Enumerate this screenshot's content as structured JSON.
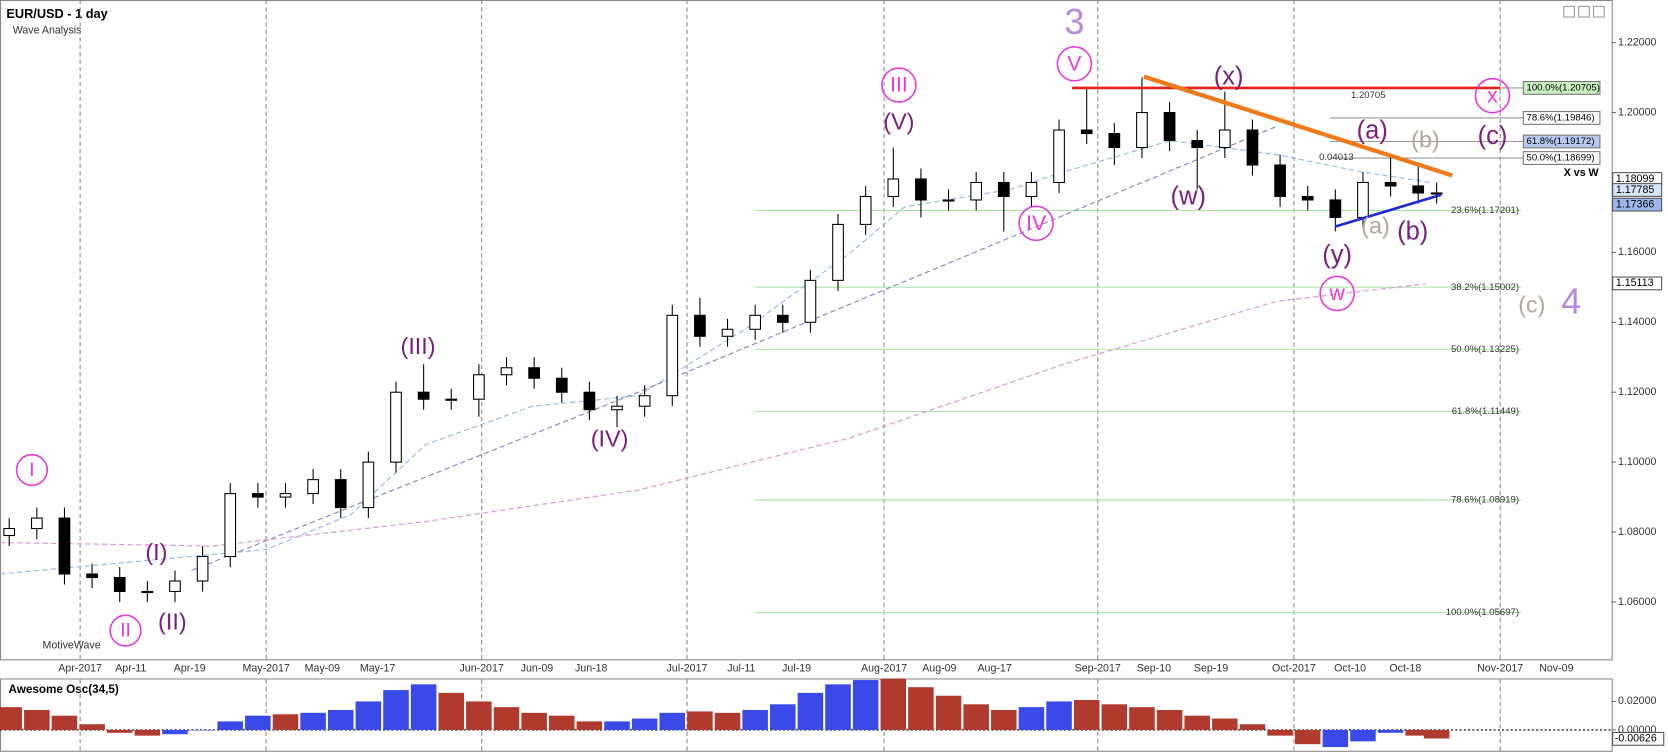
{
  "chart_data": [
    {
      "type": "candlestick",
      "title": "EUR/USD - 1 day",
      "subtitle": "Wave Analysis",
      "watermark": "MotiveWave",
      "x": [
        1,
        4,
        7,
        10,
        13,
        16,
        19,
        22,
        25,
        28,
        31,
        34,
        37,
        40,
        43,
        46,
        49,
        52,
        55,
        58,
        61,
        64,
        67,
        70,
        73,
        76,
        79,
        82,
        85,
        88,
        91,
        94,
        97,
        100,
        103,
        106,
        109,
        112,
        115,
        118,
        121,
        124,
        127,
        130,
        133,
        136,
        139,
        142,
        145,
        148,
        151,
        154,
        156
      ],
      "open": [
        1.079,
        1.081,
        1.084,
        1.068,
        1.067,
        1.063,
        1.063,
        1.066,
        1.073,
        1.091,
        1.09,
        1.091,
        1.095,
        1.087,
        1.1,
        1.12,
        1.118,
        1.118,
        1.125,
        1.127,
        1.124,
        1.12,
        1.115,
        1.116,
        1.119,
        1.142,
        1.136,
        1.138,
        1.142,
        1.14,
        1.152,
        1.168,
        1.176,
        1.181,
        1.175,
        1.175,
        1.18,
        1.176,
        1.18,
        1.195,
        1.194,
        1.19,
        1.2,
        1.192,
        1.19,
        1.195,
        1.185,
        1.176,
        1.175,
        1.17,
        1.18,
        1.179,
        1.177
      ],
      "high": [
        1.084,
        1.087,
        1.087,
        1.071,
        1.07,
        1.066,
        1.069,
        1.076,
        1.094,
        1.094,
        1.094,
        1.098,
        1.098,
        1.103,
        1.123,
        1.128,
        1.121,
        1.128,
        1.13,
        1.13,
        1.127,
        1.123,
        1.119,
        1.122,
        1.145,
        1.147,
        1.141,
        1.145,
        1.145,
        1.155,
        1.171,
        1.179,
        1.19,
        1.184,
        1.178,
        1.183,
        1.183,
        1.183,
        1.198,
        1.207,
        1.197,
        1.21,
        1.203,
        1.195,
        1.206,
        1.198,
        1.188,
        1.179,
        1.178,
        1.183,
        1.188,
        1.185,
        1.18
      ],
      "low": [
        1.076,
        1.078,
        1.065,
        1.064,
        1.06,
        1.06,
        1.06,
        1.063,
        1.07,
        1.087,
        1.087,
        1.088,
        1.084,
        1.084,
        1.097,
        1.115,
        1.115,
        1.113,
        1.122,
        1.121,
        1.117,
        1.112,
        1.11,
        1.113,
        1.116,
        1.133,
        1.133,
        1.135,
        1.137,
        1.137,
        1.149,
        1.165,
        1.173,
        1.17,
        1.172,
        1.172,
        1.166,
        1.173,
        1.177,
        1.191,
        1.185,
        1.187,
        1.189,
        1.178,
        1.187,
        1.182,
        1.173,
        1.172,
        1.166,
        1.167,
        1.176,
        1.174,
        1.174
      ],
      "close": [
        1.081,
        1.084,
        1.068,
        1.067,
        1.063,
        1.063,
        1.066,
        1.073,
        1.091,
        1.09,
        1.091,
        1.095,
        1.087,
        1.1,
        1.12,
        1.118,
        1.118,
        1.125,
        1.127,
        1.124,
        1.12,
        1.115,
        1.116,
        1.119,
        1.142,
        1.136,
        1.138,
        1.142,
        1.14,
        1.152,
        1.168,
        1.176,
        1.181,
        1.175,
        1.175,
        1.18,
        1.176,
        1.18,
        1.195,
        1.194,
        1.19,
        1.2,
        1.192,
        1.19,
        1.195,
        1.185,
        1.176,
        1.175,
        1.17,
        1.18,
        1.179,
        1.177,
        1.177
      ],
      "up_color": "#ffffff",
      "down_color": "#000000",
      "xlim": [
        0,
        175
      ],
      "xticks": [
        {
          "value": 8.7,
          "label": "Apr-2017"
        },
        {
          "value": 14.2,
          "label": "Apr-11"
        },
        {
          "value": 20.6,
          "label": "Apr-19"
        },
        {
          "value": 28.9,
          "label": "May-2017"
        },
        {
          "value": 35,
          "label": "May-09"
        },
        {
          "value": 41,
          "label": "May-17"
        },
        {
          "value": 52.3,
          "label": "Jun-2017"
        },
        {
          "value": 58.3,
          "label": "Jun-09"
        },
        {
          "value": 64.2,
          "label": "Jun-18"
        },
        {
          "value": 74.6,
          "label": "Jul-2017"
        },
        {
          "value": 80.5,
          "label": "Jul-11"
        },
        {
          "value": 86.5,
          "label": "Jul-19"
        },
        {
          "value": 96,
          "label": "Aug-2017"
        },
        {
          "value": 102,
          "label": "Aug-09"
        },
        {
          "value": 108,
          "label": "Aug-17"
        },
        {
          "value": 119.2,
          "label": "Sep-2017"
        },
        {
          "value": 125.3,
          "label": "Sep-10"
        },
        {
          "value": 131.5,
          "label": "Sep-19"
        },
        {
          "value": 140.5,
          "label": "Oct-2017"
        },
        {
          "value": 146.6,
          "label": "Oct-10"
        },
        {
          "value": 152.6,
          "label": "Oct-18"
        },
        {
          "value": 162.9,
          "label": "Nov-2017"
        },
        {
          "value": 169,
          "label": "Nov-09"
        }
      ],
      "ylim": [
        1.0436,
        1.2322
      ],
      "yticks": [
        {
          "value": 1.22,
          "label": "1.22000"
        },
        {
          "value": 1.2,
          "label": "1.20000"
        },
        {
          "value": 1.18,
          "label": "1.18000"
        },
        {
          "value": 1.16,
          "label": "1.16000"
        },
        {
          "value": 1.14,
          "label": "1.14000"
        },
        {
          "value": 1.12,
          "label": "1.12000"
        },
        {
          "value": 1.1,
          "label": "1.10000"
        },
        {
          "value": 1.08,
          "label": "1.08000"
        },
        {
          "value": 1.06,
          "label": "1.06000"
        }
      ],
      "price_tags": [
        {
          "value": 1.18099,
          "color": "#ffffff"
        },
        {
          "value": 1.17785,
          "color": "#d8e4f8"
        },
        {
          "value": 1.17366,
          "color": "#9db8ec"
        },
        {
          "value": 1.15113,
          "color": "#ffffff"
        }
      ],
      "overlays": [
        {
          "color": "#8fb4ee",
          "x": [
            0,
            28.9,
            38.1,
            46.2,
            57.8,
            69.3,
            80.9,
            92.4,
            98.2,
            109.7,
            115.5,
            127.1,
            138.6,
            147.9,
            155.4
          ],
          "values": [
            1.068,
            1.075,
            1.085,
            1.105,
            1.116,
            1.119,
            1.138,
            1.16,
            1.173,
            1.178,
            1.183,
            1.192,
            1.188,
            1.183,
            1.18
          ]
        },
        {
          "color": "#7a82c8",
          "x": [
            20.8,
            69.3,
            104,
            138.6
          ],
          "values": [
            1.069,
            1.12,
            1.158,
            1.196
          ]
        },
        {
          "color": "#d890d8",
          "x": [
            0,
            23.1,
            46.2,
            69.3,
            92.4,
            115.5,
            138.6,
            154.8
          ],
          "values": [
            1.077,
            1.076,
            1.083,
            1.092,
            1.107,
            1.128,
            1.146,
            1.151
          ]
        }
      ],
      "trend_lines": [
        {
          "color": "#e8201a",
          "x": [
            116.4,
            162.9
          ],
          "values": [
            1.20705,
            1.20705
          ]
        },
        {
          "color": "#f07a1a",
          "x": [
            124.2,
            157.7
          ],
          "values": [
            1.2103,
            1.182
          ]
        },
        {
          "color": "#1a2ad8",
          "x": [
            145,
            156.5
          ],
          "values": [
            1.1674,
            1.1765
          ]
        }
      ],
      "fib_extension": [
        {
          "value": 1.20705,
          "label": "100.0%(1.20705)",
          "color": "#c8f0c0"
        },
        {
          "value": 1.19846,
          "label": "78.6%(1.19846)",
          "color": "#ffffff"
        },
        {
          "value": 1.19172,
          "label": "61.8%(1.19172)",
          "color": "#b8c8f0"
        },
        {
          "value": 1.18699,
          "label": "50.0%(1.18699)",
          "color": "#ffffff"
        }
      ],
      "fib_retracement": [
        {
          "value": 1.17201,
          "label": "23.6%(1.17201)"
        },
        {
          "value": 1.15002,
          "label": "38.2%(1.15002)"
        },
        {
          "value": 1.13225,
          "label": "50.0%(1.13225)"
        },
        {
          "value": 1.11449,
          "label": "61.8%(1.11449)"
        },
        {
          "value": 1.08919,
          "label": "78.6%(1.08919)"
        },
        {
          "value": 1.05697,
          "label": "100.0%(1.05697)"
        }
      ],
      "annotations": [
        {
          "text": "3",
          "color": "#b48be0"
        },
        {
          "text": "V",
          "color": "#e83ad8",
          "circled": true
        },
        {
          "text": "III",
          "color": "#e83ad8",
          "circled": true
        },
        {
          "text": "(V)",
          "color": "#7b2080"
        },
        {
          "text": "(III)",
          "color": "#7b2080"
        },
        {
          "text": "I",
          "color": "#e83ad8",
          "circled": true
        },
        {
          "text": "(I)",
          "color": "#7b2080"
        },
        {
          "text": "II",
          "color": "#e83ad8",
          "circled": true
        },
        {
          "text": "(II)",
          "color": "#7b2080"
        },
        {
          "text": "(IV)",
          "color": "#7b2080"
        },
        {
          "text": "IV",
          "color": "#e83ad8",
          "circled": true
        },
        {
          "text": "(x)",
          "color": "#7b2080"
        },
        {
          "text": "(w)",
          "color": "#7b2080"
        },
        {
          "text": "(a)",
          "color": "#7b2080"
        },
        {
          "text": "(b)",
          "color": "#b0a898"
        },
        {
          "text": "(c)",
          "color": "#7b2080"
        },
        {
          "text": "x",
          "color": "#e83ad8",
          "circled": true
        },
        {
          "text": "(a)",
          "color": "#b0a898"
        },
        {
          "text": "(b)",
          "color": "#7b2080"
        },
        {
          "text": "(y)",
          "color": "#7b2080"
        },
        {
          "text": "w",
          "color": "#e83ad8",
          "circled": true
        },
        {
          "text": "(c)",
          "color": "#b0a898"
        },
        {
          "text": "4",
          "color": "#b48be0"
        }
      ],
      "notes": [
        "1.20705",
        "0.04013",
        "X vs W"
      ]
    },
    {
      "type": "histogram",
      "title": "Awesome Osc(34,5)",
      "x": [
        1,
        4,
        7,
        10,
        13,
        16,
        19,
        22,
        25,
        28,
        31,
        34,
        37,
        40,
        43,
        46,
        49,
        52,
        55,
        58,
        61,
        64,
        67,
        70,
        73,
        76,
        79,
        82,
        85,
        88,
        91,
        94,
        97,
        100,
        103,
        106,
        109,
        112,
        115,
        118,
        121,
        124,
        127,
        130,
        133,
        136,
        139,
        142,
        145,
        148,
        151,
        154,
        156
      ],
      "values": [
        0.016,
        0.014,
        0.01,
        0.004,
        -0.002,
        -0.004,
        -0.003,
        0.0,
        0.006,
        0.01,
        0.011,
        0.012,
        0.014,
        0.02,
        0.028,
        0.032,
        0.026,
        0.02,
        0.016,
        0.012,
        0.01,
        0.006,
        0.006,
        0.008,
        0.012,
        0.013,
        0.012,
        0.014,
        0.018,
        0.026,
        0.032,
        0.035,
        0.036,
        0.03,
        0.024,
        0.018,
        0.014,
        0.016,
        0.02,
        0.021,
        0.018,
        0.016,
        0.014,
        0.01,
        0.008,
        0.004,
        -0.004,
        -0.01,
        -0.012,
        -0.008,
        -0.002,
        -0.004,
        -0.006
      ],
      "colors": [
        "#b03a2e",
        "#b03a2e",
        "#b03a2e",
        "#b03a2e",
        "#b03a2e",
        "#b03a2e",
        "#3a4ae8",
        "#3a4ae8",
        "#3a4ae8",
        "#3a4ae8",
        "#b03a2e",
        "#3a4ae8",
        "#3a4ae8",
        "#3a4ae8",
        "#3a4ae8",
        "#3a4ae8",
        "#b03a2e",
        "#b03a2e",
        "#b03a2e",
        "#b03a2e",
        "#b03a2e",
        "#b03a2e",
        "#3a4ae8",
        "#3a4ae8",
        "#3a4ae8",
        "#b03a2e",
        "#b03a2e",
        "#3a4ae8",
        "#3a4ae8",
        "#3a4ae8",
        "#3a4ae8",
        "#3a4ae8",
        "#b03a2e",
        "#b03a2e",
        "#b03a2e",
        "#b03a2e",
        "#b03a2e",
        "#3a4ae8",
        "#3a4ae8",
        "#b03a2e",
        "#b03a2e",
        "#b03a2e",
        "#b03a2e",
        "#b03a2e",
        "#b03a2e",
        "#b03a2e",
        "#b03a2e",
        "#b03a2e",
        "#3a4ae8",
        "#3a4ae8",
        "#3a4ae8",
        "#b03a2e",
        "#b03a2e"
      ],
      "xlim": [
        0,
        175
      ],
      "ylim": [
        -0.0146,
        0.0354
      ],
      "yticks": [
        {
          "value": 0.02,
          "label": "0.02000"
        },
        {
          "value": 0,
          "label": "0.00000"
        }
      ],
      "price_tags": [
        {
          "value": -0.00626,
          "label": "-0.00626",
          "color": "#ffffff"
        }
      ]
    }
  ]
}
